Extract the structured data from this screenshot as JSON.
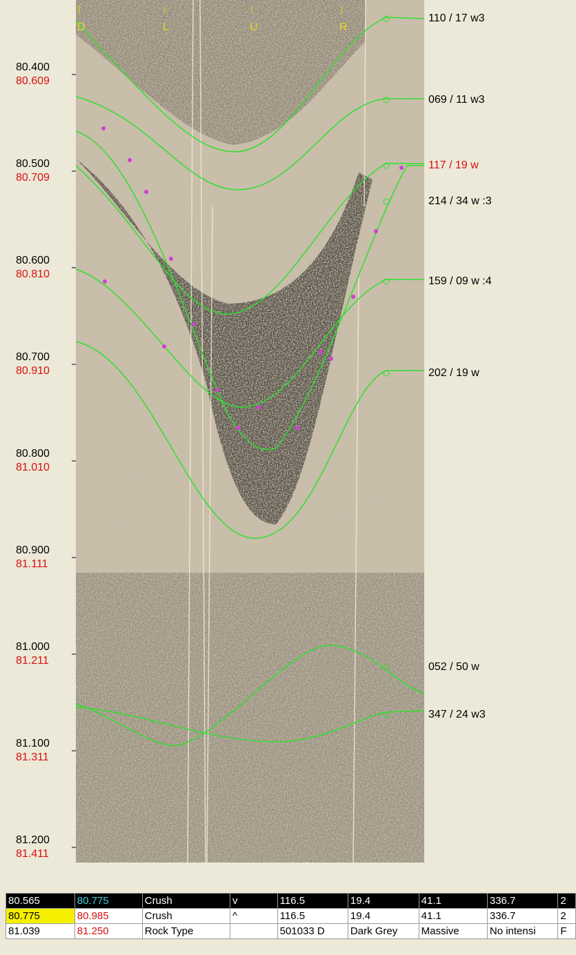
{
  "orientation": [
    "D",
    "L",
    "U",
    "R"
  ],
  "depths": [
    [
      "80.400",
      "80.609"
    ],
    [
      "80.500",
      "80.709"
    ],
    [
      "80.600",
      "80.810"
    ],
    [
      "80.700",
      "80.910"
    ],
    [
      "80.800",
      "81.010"
    ],
    [
      "80.900",
      "81.111"
    ],
    [
      "81.000",
      "81.211"
    ],
    [
      "81.100",
      "81.311"
    ],
    [
      "81.200",
      "81.411"
    ]
  ],
  "picks": [
    {
      "label": "110 / 17 w3",
      "color": "#000000"
    },
    {
      "label": "069 / 11 w3",
      "color": "#000000"
    },
    {
      "label": "117 / 19 w",
      "color": "#d81010"
    },
    {
      "label": "214 / 34 w :3",
      "color": "#000000"
    },
    {
      "label": "159 / 09 w :4",
      "color": "#000000"
    },
    {
      "label": "202 / 19 w",
      "color": "#000000"
    },
    {
      "label": "052 / 50 w",
      "color": "#000000"
    },
    {
      "label": "347 / 24 w3",
      "color": "#000000"
    }
  ],
  "table": {
    "rows": [
      [
        "80.565",
        "80.775",
        "Crush",
        "v",
        "116.5",
        "19.4",
        "41.1",
        "336.7",
        "2"
      ],
      [
        "80.775",
        "80.985",
        "Crush",
        "^",
        "116.5",
        "19.4",
        "41.1",
        "336.7",
        "2"
      ],
      [
        "81.039",
        "81.250",
        "Rock Type",
        null,
        "501033 D",
        "Dark Grey",
        "Massive",
        "No intensi",
        "F"
      ]
    ]
  }
}
